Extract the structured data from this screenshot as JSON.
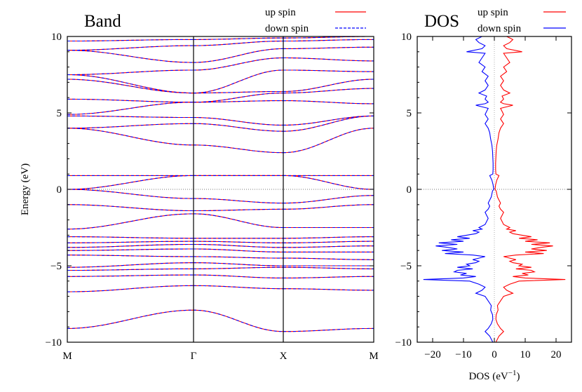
{
  "chart_data": [
    {
      "type": "line",
      "title": "Band",
      "ylabel": "Energy (eV)",
      "xlabel": "",
      "ylim": [
        -10,
        10
      ],
      "yticks": [
        "10",
        "5",
        "0",
        "−5",
        "−10"
      ],
      "yticks_values": [
        10,
        5,
        0,
        -5,
        -10
      ],
      "kpoints": [
        "M",
        "Γ",
        "X",
        "M"
      ],
      "grid": false,
      "legend_position": "top-right (above plot)",
      "colors": {
        "up": "#ff0000",
        "down": "#0000ff"
      },
      "series": [
        {
          "name": "up spin",
          "style": "solid red"
        },
        {
          "name": "down spin",
          "style": "dashed blue"
        }
      ],
      "bands": [
        {
          "M": -9.1,
          "G": -7.9,
          "X": -9.3,
          "M2": -9.1
        },
        {
          "M": -6.7,
          "G": -6.3,
          "X": -6.5,
          "M2": -6.6
        },
        {
          "M": -5.7,
          "G": -5.6,
          "X": -5.8,
          "M2": -5.7
        },
        {
          "M": -5.3,
          "G": -5.2,
          "X": -5.1,
          "M2": -5.2
        },
        {
          "M": -5.1,
          "G": -4.8,
          "X": -5.0,
          "M2": -5.0
        },
        {
          "M": -4.3,
          "G": -4.4,
          "X": -4.5,
          "M2": -4.6
        },
        {
          "M": -4.0,
          "G": -3.9,
          "X": -4.1,
          "M2": -4.1
        },
        {
          "M": -3.8,
          "G": -3.6,
          "X": -3.8,
          "M2": -3.7
        },
        {
          "M": -3.5,
          "G": -3.4,
          "X": -3.5,
          "M2": -3.4
        },
        {
          "M": -3.1,
          "G": -3.2,
          "X": -3.2,
          "M2": -3.1
        },
        {
          "M": -2.6,
          "G": -1.6,
          "X": -2.5,
          "M2": -2.5
        },
        {
          "M": -1.0,
          "G": -1.4,
          "X": -1.3,
          "M2": -1.0
        },
        {
          "M": 0.0,
          "G": -0.6,
          "X": -0.9,
          "M2": -0.4
        },
        {
          "M": 0.0,
          "G": 0.9,
          "X": 0.9,
          "M2": 0.0
        },
        {
          "M": 0.9,
          "G": 0.9,
          "X": 0.9,
          "M2": 0.9
        },
        {
          "M": 4.0,
          "G": 2.9,
          "X": 2.4,
          "M2": 4.0
        },
        {
          "M": 4.0,
          "G": 4.3,
          "X": 3.8,
          "M2": 4.8
        },
        {
          "M": 4.8,
          "G": 4.7,
          "X": 4.2,
          "M2": 4.8
        },
        {
          "M": 4.9,
          "G": 5.7,
          "X": 5.8,
          "M2": 5.6
        },
        {
          "M": 5.9,
          "G": 5.7,
          "X": 6.3,
          "M2": 6.6
        },
        {
          "M": 7.2,
          "G": 6.3,
          "X": 6.4,
          "M2": 7.2
        },
        {
          "M": 7.5,
          "G": 6.3,
          "X": 7.8,
          "M2": 7.7
        },
        {
          "M": 7.5,
          "G": 7.8,
          "X": 8.6,
          "M2": 8.4
        },
        {
          "M": 9.1,
          "G": 8.3,
          "X": 9.2,
          "M2": 9.3
        },
        {
          "M": 9.1,
          "G": 9.4,
          "X": 9.7,
          "M2": 9.8
        },
        {
          "M": 9.7,
          "G": 9.8,
          "X": 9.9,
          "M2": 10.0
        }
      ]
    },
    {
      "type": "line",
      "title": "DOS",
      "xlabel": "DOS (eV",
      "xlabel_sup": "−1",
      "xlabel_close": ")",
      "ylim": [
        -10,
        10
      ],
      "xlim": [
        -25,
        25
      ],
      "xticks": [
        "−20",
        "−10",
        "0",
        "10",
        "20"
      ],
      "xticks_values": [
        -20,
        -10,
        0,
        10,
        20
      ],
      "yticks": [
        "10",
        "5",
        "0",
        "−5",
        "−10"
      ],
      "yticks_values": [
        10,
        5,
        0,
        -5,
        -10
      ],
      "grid": false,
      "legend_position": "top-right (above plot)",
      "colors": {
        "up": "#ff0000",
        "down": "#0000ff"
      },
      "series": [
        {
          "name": "up spin",
          "sign": 1
        },
        {
          "name": "down spin",
          "sign": -1
        }
      ],
      "energy": [
        -10,
        -9.6,
        -9.3,
        -9.1,
        -8.8,
        -8.5,
        -8.2,
        -7.9,
        -7.6,
        -7.3,
        -7.0,
        -6.8,
        -6.6,
        -6.4,
        -6.2,
        -6.0,
        -5.9,
        -5.8,
        -5.7,
        -5.6,
        -5.5,
        -5.4,
        -5.3,
        -5.2,
        -5.1,
        -5.0,
        -4.9,
        -4.8,
        -4.7,
        -4.6,
        -4.5,
        -4.4,
        -4.3,
        -4.2,
        -4.1,
        -4.0,
        -3.9,
        -3.8,
        -3.7,
        -3.6,
        -3.5,
        -3.4,
        -3.3,
        -3.2,
        -3.1,
        -3.0,
        -2.9,
        -2.8,
        -2.7,
        -2.6,
        -2.5,
        -2.3,
        -2.1,
        -1.9,
        -1.7,
        -1.5,
        -1.3,
        -1.1,
        -0.9,
        -0.7,
        -0.5,
        -0.3,
        -0.1,
        0.0,
        0.3,
        0.6,
        0.9,
        1.0,
        1.3,
        1.7,
        2.1,
        2.5,
        2.9,
        3.3,
        3.7,
        4.0,
        4.3,
        4.6,
        4.9,
        5.1,
        5.3,
        5.5,
        5.6,
        5.7,
        5.9,
        6.1,
        6.3,
        6.5,
        6.8,
        7.1,
        7.4,
        7.7,
        8.0,
        8.3,
        8.6,
        8.9,
        9.0,
        9.2,
        9.4,
        9.6,
        9.8,
        10.0
      ],
      "dos": [
        0.5,
        1.5,
        3.0,
        2.0,
        1.0,
        0.5,
        0.6,
        1.2,
        1.0,
        2.0,
        3.0,
        6.0,
        4.0,
        3.0,
        5.0,
        8.0,
        23.0,
        10.0,
        6.0,
        11.0,
        9.0,
        13.0,
        12.0,
        7.0,
        12.0,
        8.0,
        9.0,
        6.0,
        5.0,
        7.0,
        5.0,
        3.0,
        7.0,
        16.0,
        10.0,
        17.0,
        12.0,
        15.0,
        19.0,
        12.0,
        18.0,
        10.0,
        14.0,
        8.0,
        12.0,
        9.0,
        6.0,
        5.0,
        7.0,
        4.0,
        5.0,
        3.0,
        2.5,
        2.0,
        2.5,
        3.0,
        2.0,
        1.5,
        2.0,
        1.5,
        1.0,
        0.8,
        0.6,
        0.2,
        0.4,
        0.8,
        1.5,
        0.5,
        0.4,
        0.4,
        0.5,
        0.6,
        0.8,
        1.2,
        1.5,
        2.0,
        3.0,
        2.0,
        3.0,
        2.5,
        2.0,
        6.0,
        3.0,
        2.0,
        3.0,
        2.5,
        5.0,
        3.0,
        2.0,
        3.0,
        2.0,
        4.0,
        3.0,
        5.0,
        4.0,
        3.0,
        9.0,
        4.0,
        3.0,
        5.0,
        6.0,
        4.0
      ]
    }
  ]
}
